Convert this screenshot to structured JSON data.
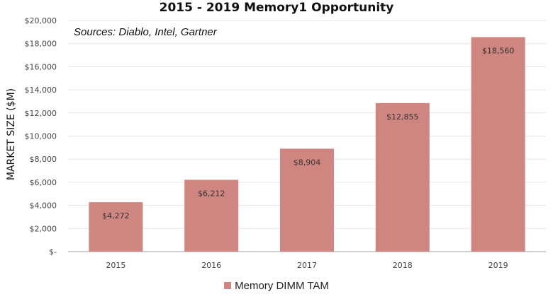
{
  "chart_data": {
    "type": "bar",
    "title": "2015 - 2019 Memory1 Opportunity",
    "annotation": "Sources: Diablo, Intel, Gartner",
    "ylabel": "MARKET SIZE ($M)",
    "xlabel": "",
    "categories": [
      "2015",
      "2016",
      "2017",
      "2018",
      "2019"
    ],
    "series": [
      {
        "name": "Memory DIMM TAM",
        "values": [
          4272,
          6212,
          8904,
          12855,
          18560
        ],
        "data_labels": [
          "$4,272",
          "$6,212",
          "$8,904",
          "$12,855",
          "$18,560"
        ],
        "color": "#d08680"
      }
    ],
    "ylim": [
      0,
      20000
    ],
    "yticks": [
      0,
      2000,
      4000,
      6000,
      8000,
      10000,
      12000,
      14000,
      16000,
      18000,
      20000
    ],
    "ytick_labels": [
      "$-",
      "$2,000",
      "$4,000",
      "$6,000",
      "$8,000",
      "$10,000",
      "$12,000",
      "$14,000",
      "$16,000",
      "$18,000",
      "$20,000"
    ],
    "grid": true,
    "legend_position": "bottom",
    "colors": {
      "grid": "#e6e6e6",
      "axis": "#bfbfbf"
    }
  }
}
